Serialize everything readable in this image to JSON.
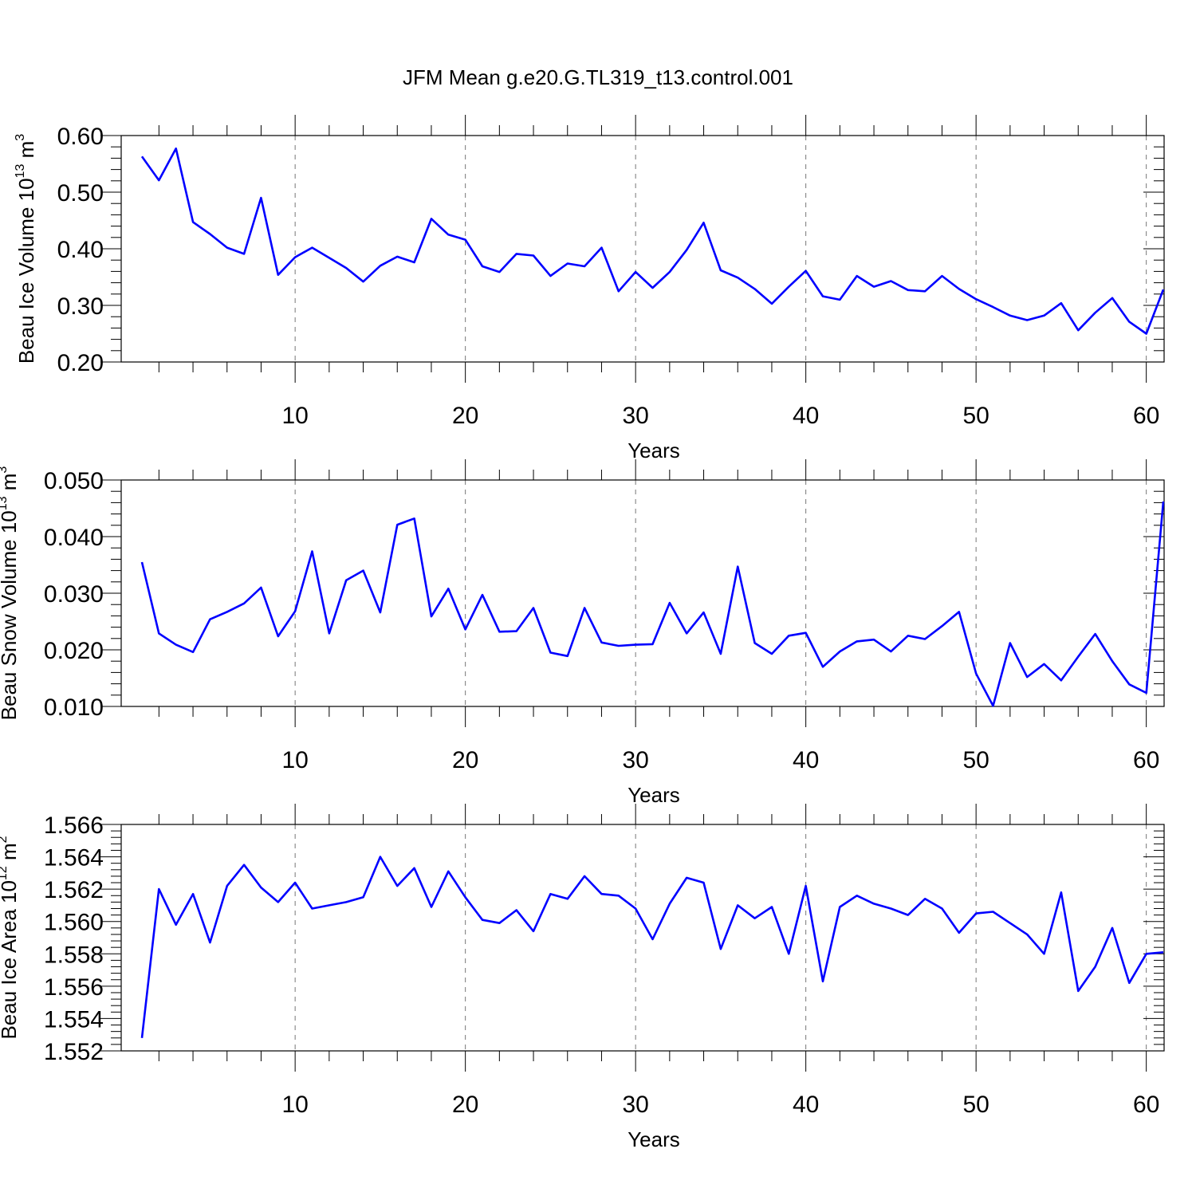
{
  "figure": {
    "title": "JFM Mean g.e20.G.TL319_t13.control.001"
  },
  "chart_data": [
    {
      "type": "line",
      "xlabel": "Years",
      "ylabel": {
        "pre": "Beau Ice Volume 10",
        "exp": "13",
        "unit": " m",
        "unit_exp": "3"
      },
      "xlim": [
        1,
        61
      ],
      "ylim": [
        0.2,
        0.6
      ],
      "x_ticks": [
        10,
        20,
        30,
        40,
        50,
        60
      ],
      "y_ticks": [
        0.2,
        0.3,
        0.4,
        0.5,
        0.6
      ],
      "y_tick_labels": [
        "0.20",
        "0.30",
        "0.40",
        "0.50",
        "0.60"
      ],
      "grid": "vertical-dashed-at-major-x",
      "line_color": "#0000ff",
      "x": [
        1,
        2,
        3,
        4,
        5,
        6,
        7,
        8,
        9,
        10,
        11,
        12,
        13,
        14,
        15,
        16,
        17,
        18,
        19,
        20,
        21,
        22,
        23,
        24,
        25,
        26,
        27,
        28,
        29,
        30,
        31,
        32,
        33,
        34,
        35,
        36,
        37,
        38,
        39,
        40,
        41,
        42,
        43,
        44,
        45,
        46,
        47,
        48,
        49,
        50,
        51,
        52,
        53,
        54,
        55,
        56,
        57,
        58,
        59,
        60,
        61
      ],
      "values": [
        0.563,
        0.521,
        0.577,
        0.447,
        0.426,
        0.402,
        0.391,
        0.49,
        0.354,
        0.385,
        0.402,
        0.384,
        0.366,
        0.342,
        0.37,
        0.386,
        0.376,
        0.453,
        0.425,
        0.416,
        0.369,
        0.359,
        0.391,
        0.388,
        0.352,
        0.374,
        0.369,
        0.402,
        0.325,
        0.359,
        0.331,
        0.359,
        0.398,
        0.446,
        0.362,
        0.349,
        0.329,
        0.303,
        0.333,
        0.361,
        0.316,
        0.31,
        0.352,
        0.333,
        0.343,
        0.327,
        0.325,
        0.352,
        0.329,
        0.311,
        0.297,
        0.282,
        0.274,
        0.282,
        0.304,
        0.256,
        0.287,
        0.313,
        0.271,
        0.25,
        0.328
      ]
    },
    {
      "type": "line",
      "xlabel": "Years",
      "ylabel": {
        "pre": "Beau Snow Volume 10",
        "exp": "13",
        "unit": " m",
        "unit_exp": "3"
      },
      "xlim": [
        1,
        61
      ],
      "ylim": [
        0.01,
        0.05
      ],
      "x_ticks": [
        10,
        20,
        30,
        40,
        50,
        60
      ],
      "y_ticks": [
        0.01,
        0.02,
        0.03,
        0.04,
        0.05
      ],
      "y_tick_labels": [
        "0.010",
        "0.020",
        "0.030",
        "0.040",
        "0.050"
      ],
      "grid": "vertical-dashed-at-major-x",
      "line_color": "#0000ff",
      "x": [
        1,
        2,
        3,
        4,
        5,
        6,
        7,
        8,
        9,
        10,
        11,
        12,
        13,
        14,
        15,
        16,
        17,
        18,
        19,
        20,
        21,
        22,
        23,
        24,
        25,
        26,
        27,
        28,
        29,
        30,
        31,
        32,
        33,
        34,
        35,
        36,
        37,
        38,
        39,
        40,
        41,
        42,
        43,
        44,
        45,
        46,
        47,
        48,
        49,
        50,
        51,
        52,
        53,
        54,
        55,
        56,
        57,
        58,
        59,
        60,
        61
      ],
      "values": [
        0.0355,
        0.0229,
        0.0209,
        0.0196,
        0.0254,
        0.0267,
        0.0282,
        0.031,
        0.0224,
        0.0268,
        0.0374,
        0.0229,
        0.0323,
        0.034,
        0.0266,
        0.0421,
        0.0432,
        0.0259,
        0.0308,
        0.0236,
        0.0297,
        0.0232,
        0.0233,
        0.0274,
        0.0195,
        0.0189,
        0.0274,
        0.0213,
        0.0207,
        0.0209,
        0.021,
        0.0283,
        0.0229,
        0.0266,
        0.0193,
        0.0347,
        0.0212,
        0.0193,
        0.0225,
        0.023,
        0.017,
        0.0197,
        0.0215,
        0.0218,
        0.0197,
        0.0225,
        0.0219,
        0.0242,
        0.0267,
        0.0158,
        0.0101,
        0.0212,
        0.0152,
        0.0175,
        0.0146,
        0.0188,
        0.0228,
        0.018,
        0.0139,
        0.0124,
        0.0462
      ]
    },
    {
      "type": "line",
      "xlabel": "Years",
      "ylabel": {
        "pre": "Beau Ice Area 10",
        "exp": "12",
        "unit": " m",
        "unit_exp": "2"
      },
      "xlim": [
        1,
        61
      ],
      "ylim": [
        1.552,
        1.566
      ],
      "x_ticks": [
        10,
        20,
        30,
        40,
        50,
        60
      ],
      "y_ticks": [
        1.552,
        1.554,
        1.556,
        1.558,
        1.56,
        1.562,
        1.564,
        1.566
      ],
      "y_tick_labels": [
        "1.552",
        "1.554",
        "1.556",
        "1.558",
        "1.560",
        "1.562",
        "1.564",
        "1.566"
      ],
      "grid": "vertical-dashed-at-major-x",
      "line_color": "#0000ff",
      "x": [
        1,
        2,
        3,
        4,
        5,
        6,
        7,
        8,
        9,
        10,
        11,
        12,
        13,
        14,
        15,
        16,
        17,
        18,
        19,
        20,
        21,
        22,
        23,
        24,
        25,
        26,
        27,
        28,
        29,
        30,
        31,
        32,
        33,
        34,
        35,
        36,
        37,
        38,
        39,
        40,
        41,
        42,
        43,
        44,
        45,
        46,
        47,
        48,
        49,
        50,
        51,
        52,
        53,
        54,
        55,
        56,
        57,
        58,
        59,
        60,
        61
      ],
      "values": [
        1.5528,
        1.562,
        1.5598,
        1.5617,
        1.5587,
        1.5622,
        1.5635,
        1.5621,
        1.5612,
        1.5624,
        1.5608,
        1.561,
        1.5612,
        1.5615,
        1.564,
        1.5622,
        1.5633,
        1.5609,
        1.5631,
        1.5615,
        1.5601,
        1.5599,
        1.5607,
        1.5594,
        1.5617,
        1.5614,
        1.5628,
        1.5617,
        1.5616,
        1.5608,
        1.5589,
        1.5611,
        1.5627,
        1.5624,
        1.5583,
        1.561,
        1.5602,
        1.5609,
        1.558,
        1.5622,
        1.5563,
        1.5609,
        1.5616,
        1.5611,
        1.5608,
        1.5604,
        1.5614,
        1.5608,
        1.5593,
        1.5605,
        1.5606,
        1.5599,
        1.5592,
        1.558,
        1.5618,
        1.5557,
        1.5572,
        1.5596,
        1.5562,
        1.558,
        1.5581
      ]
    }
  ]
}
